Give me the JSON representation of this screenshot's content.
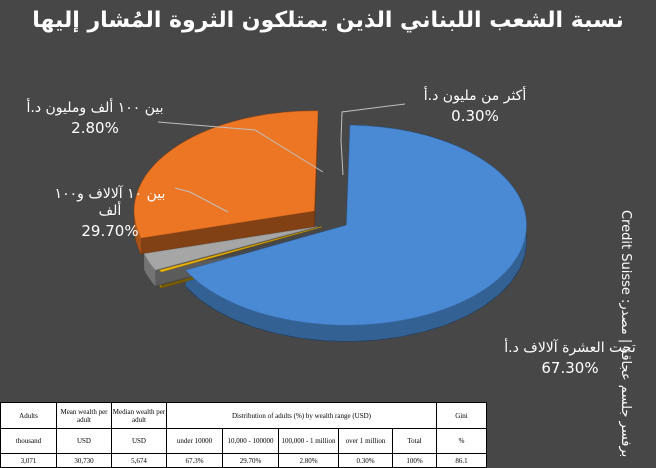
{
  "title": "نسبة الشعب اللبناني الذين يمتلكون الثروة المُشار إليها",
  "credit": "برفسر جلسم عجاقة | مصدر: Credit Suisse",
  "chart_data": {
    "type": "pie",
    "title": "نسبة الشعب اللبناني الذين يمتلكون الثروة المُشار إليها",
    "slices": [
      {
        "label": "تحت العشرة آلالاف د.أ",
        "value": 67.3,
        "value_label": "67.30%",
        "color": "#4a8ad4"
      },
      {
        "label": "أكثر من مليون د.أ",
        "value": 0.3,
        "value_label": "0.30%",
        "color": "#f2b705"
      },
      {
        "label": "بين ١٠٠ ألف ومليون د.أ",
        "value": 2.8,
        "value_label": "2.80%",
        "color": "#a6a6a6"
      },
      {
        "label": "بين ١٠ آلالاف و١٠٠ ألف",
        "value": 29.7,
        "value_label": "29.70%",
        "color": "#ed7625"
      }
    ]
  },
  "table": {
    "header": {
      "adults": "Adults",
      "mean": "Mean wealth per adult",
      "median": "Median wealth per adult",
      "distribution": "Distribution of adults (%) by wealth range (USD)",
      "gini": "Gini"
    },
    "units": [
      "thousand",
      "USD",
      "USD",
      "under 10000",
      "10,000 - 100000",
      "100,000 - 1 million",
      "over 1 million",
      "Total",
      "%"
    ],
    "values": [
      "3,071",
      "30,730",
      "5,674",
      "67.3%",
      "29.70%",
      "2.80%",
      "0.30%",
      "100%",
      "86.1"
    ]
  }
}
